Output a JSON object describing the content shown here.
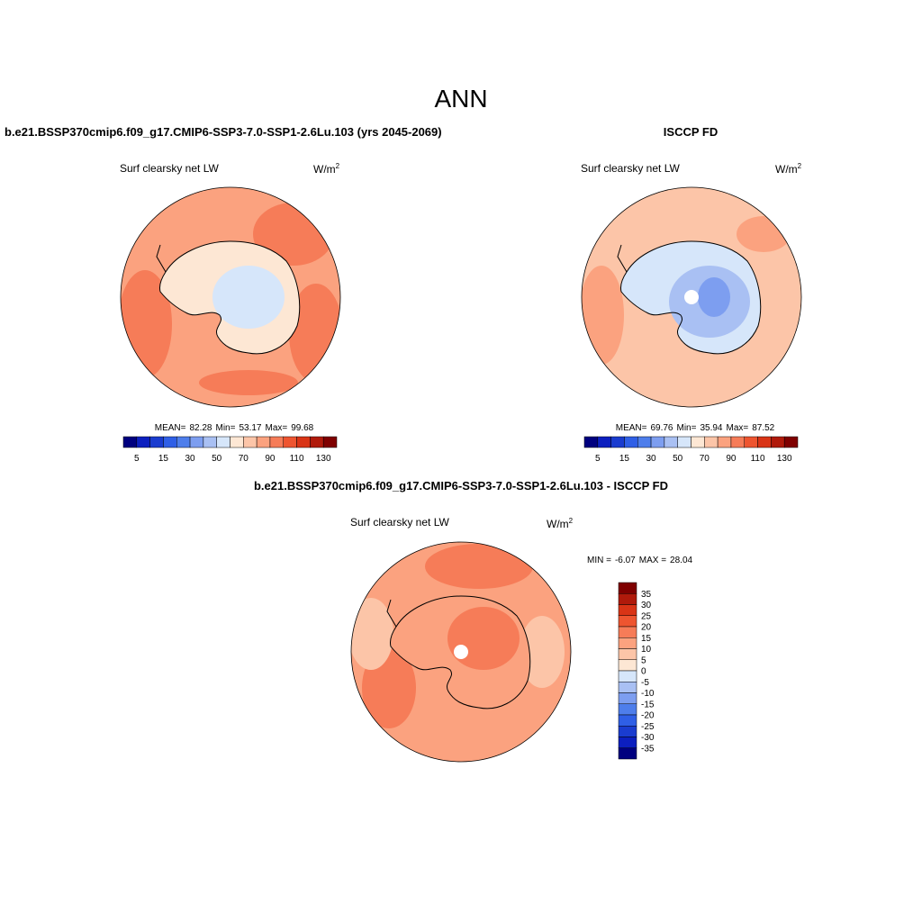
{
  "title": "ANN",
  "panels": [
    {
      "heading": "b.e21.BSSP370cmip6.f09_g17.CMIP6-SSP3-7.0-SSP1-2.6Lu.103 (yrs 2045-2069)",
      "variable": "Surf clearsky net LW",
      "units": "W/m",
      "units_exponent": "2",
      "stats": {
        "mean_label": "MEAN=",
        "mean": 82.28,
        "min_label": "Min=",
        "min": 53.17,
        "max_label": "Max=",
        "max": 99.68
      },
      "colorbar": {
        "labels": [
          5,
          15,
          30,
          50,
          70,
          90,
          110,
          130
        ],
        "colors": [
          "#00007f",
          "#0c1fbf",
          "#1a3ccf",
          "#2f5fe6",
          "#4e7eeb",
          "#7d9ef0",
          "#a9c0f3",
          "#d6e6fa",
          "#fde7d4",
          "#fcc5a8",
          "#fba27f",
          "#f67c58",
          "#ee5530",
          "#d93416",
          "#b01a0b",
          "#7f0000"
        ]
      }
    },
    {
      "heading": "ISCCP FD",
      "variable": "Surf clearsky net LW",
      "units": "W/m",
      "units_exponent": "2",
      "stats": {
        "mean_label": "MEAN=",
        "mean": 69.76,
        "min_label": "Min=",
        "min": 35.94,
        "max_label": "Max=",
        "max": 87.52
      },
      "colorbar": {
        "labels": [
          5,
          15,
          30,
          50,
          70,
          90,
          110,
          130
        ],
        "colors": [
          "#00007f",
          "#0c1fbf",
          "#1a3ccf",
          "#2f5fe6",
          "#4e7eeb",
          "#7d9ef0",
          "#a9c0f3",
          "#d6e6fa",
          "#fde7d4",
          "#fcc5a8",
          "#fba27f",
          "#f67c58",
          "#ee5530",
          "#d93416",
          "#b01a0b",
          "#7f0000"
        ]
      }
    },
    {
      "heading": "b.e21.BSSP370cmip6.f09_g17.CMIP6-SSP3-7.0-SSP1-2.6Lu.103 - ISCCP FD",
      "variable": "Surf clearsky net LW",
      "units": "W/m",
      "units_exponent": "2",
      "stats": {
        "min_label": "MIN =",
        "min": -6.07,
        "max_label": "MAX =",
        "max": 28.04
      },
      "colorbar": {
        "labels": [
          35,
          30,
          25,
          20,
          15,
          10,
          5,
          0,
          -5,
          -10,
          -15,
          -20,
          -25,
          -30,
          -35
        ],
        "colors": [
          "#7f0000",
          "#b01a0b",
          "#d93416",
          "#ee5530",
          "#f67c58",
          "#fba27f",
          "#fcc5a8",
          "#fde7d4",
          "#d6e6fa",
          "#a9c0f3",
          "#7d9ef0",
          "#4e7eeb",
          "#2f5fe6",
          "#1a3ccf",
          "#0c1fbf",
          "#00007f"
        ]
      }
    }
  ]
}
